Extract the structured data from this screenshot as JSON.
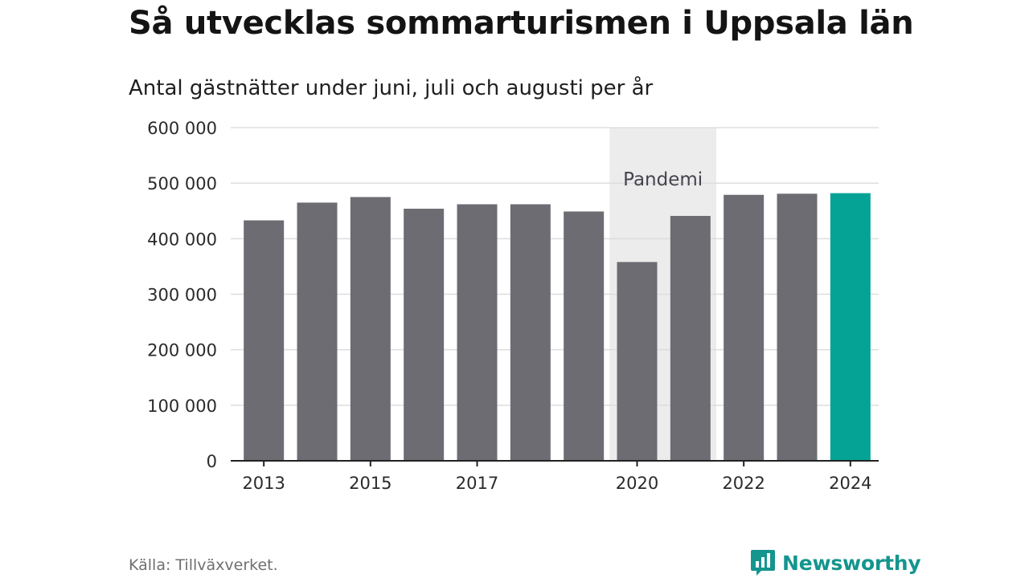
{
  "title": "Så utvecklas sommarturismen i Uppsala län",
  "subtitle": "Antal gästnätter under juni, juli och augusti per år",
  "source": "Källa: Tillväxverket.",
  "brand": {
    "name": "Newsworthy",
    "icon": "newsworthy-logo-icon"
  },
  "colors": {
    "bar": "#6d6c72",
    "highlight": "#04a396",
    "band": "#ececec",
    "grid": "#dddddd",
    "axis": "#222222",
    "brand": "#14958e"
  },
  "chart_data": {
    "type": "bar",
    "categories": [
      "2013",
      "2014",
      "2015",
      "2016",
      "2017",
      "2018",
      "2019",
      "2020",
      "2021",
      "2022",
      "2023",
      "2024"
    ],
    "values": [
      433000,
      465000,
      475000,
      454000,
      462000,
      462000,
      449000,
      358000,
      441000,
      479000,
      481000,
      482000
    ],
    "highlight_category": "2024",
    "ylim": [
      0,
      600000
    ],
    "yticks": [
      0,
      100000,
      200000,
      300000,
      400000,
      500000,
      600000
    ],
    "ytick_labels": [
      "0",
      "100 000",
      "200 000",
      "300 000",
      "400 000",
      "500 000",
      "600 000"
    ],
    "xtick_labels": [
      "2013",
      "2015",
      "2017",
      "2020",
      "2022",
      "2024"
    ],
    "grid": true,
    "annotation": {
      "label": "Pandemi",
      "from": "2020",
      "to": "2021"
    }
  }
}
